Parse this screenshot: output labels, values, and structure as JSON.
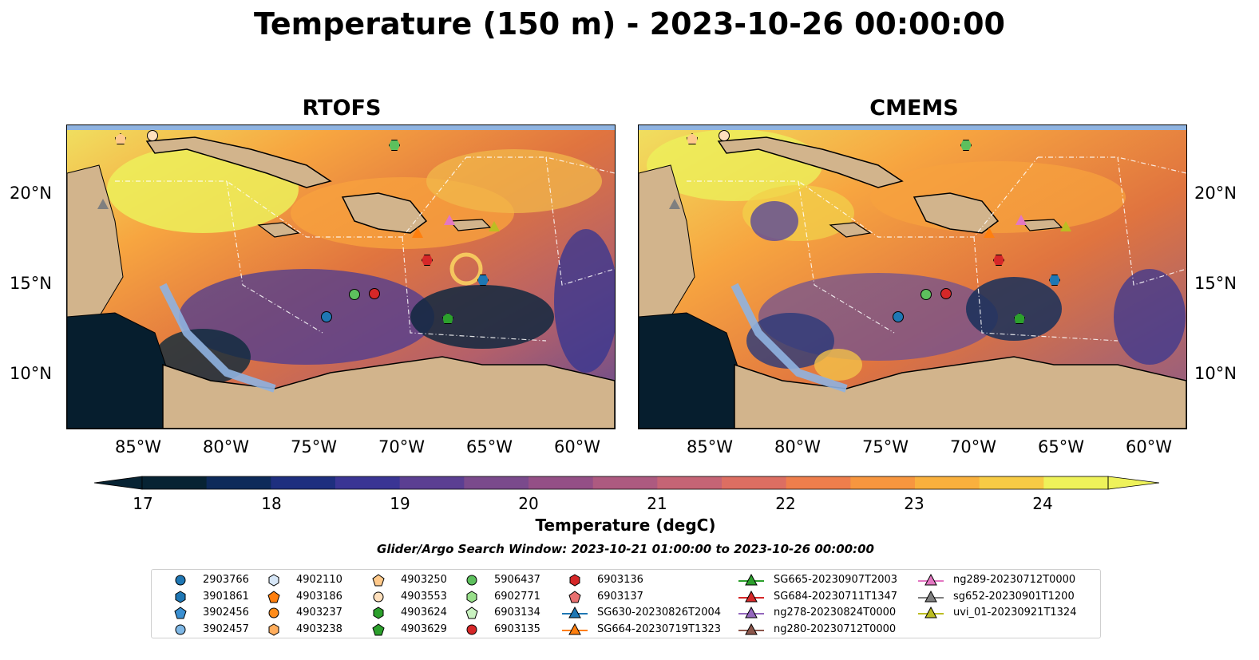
{
  "title": "Temperature (150 m) - 2023-10-26 00:00:00",
  "maps": {
    "left_title": "RTOFS",
    "right_title": "CMEMS",
    "lat_labels": [
      "20°N",
      "15°N",
      "10°N"
    ],
    "lon_labels": [
      "85°W",
      "80°W",
      "75°W",
      "70°W",
      "65°W",
      "60°W"
    ],
    "colors": {
      "land": "#d2b48c",
      "shallow_water": "#8fb3e0",
      "deep_cold": "#061e2e"
    }
  },
  "colorbar": {
    "title": "Temperature (degC)",
    "ticks": [
      "17",
      "18",
      "19",
      "20",
      "21",
      "22",
      "23",
      "24"
    ],
    "range": [
      17,
      24.5
    ],
    "step": 0.5
  },
  "search_window": "Glider/Argo Search Window: 2023-10-21 01:00:00 to 2023-10-26 00:00:00",
  "legend": {
    "items": [
      {
        "label": "2903766",
        "marker": "circle",
        "color": "#1f77b4"
      },
      {
        "label": "3901861",
        "marker": "hexagon",
        "color": "#1f77b4"
      },
      {
        "label": "3902456",
        "marker": "pentagon",
        "color": "#3a8fd1"
      },
      {
        "label": "3902457",
        "marker": "circle",
        "color": "#7fb8e6"
      },
      {
        "label": "4902110",
        "marker": "hexagon",
        "color": "#d6e6f7"
      },
      {
        "label": "4903186",
        "marker": "pentagon",
        "color": "#ff7f0e"
      },
      {
        "label": "4903237",
        "marker": "circle",
        "color": "#ff8c1a"
      },
      {
        "label": "4903238",
        "marker": "hexagon",
        "color": "#ffad5c"
      },
      {
        "label": "4903250",
        "marker": "pentagon",
        "color": "#ffc98a"
      },
      {
        "label": "4903553",
        "marker": "circle",
        "color": "#ffe0bd"
      },
      {
        "label": "4903624",
        "marker": "hexagon",
        "color": "#2ca02c"
      },
      {
        "label": "4903629",
        "marker": "pentagon",
        "color": "#2ca02c"
      },
      {
        "label": "5906437",
        "marker": "circle",
        "color": "#5dc05d"
      },
      {
        "label": "6902771",
        "marker": "hexagon",
        "color": "#98df8a"
      },
      {
        "label": "6903134",
        "marker": "pentagon",
        "color": "#c9f2c0"
      },
      {
        "label": "6903135",
        "marker": "circle",
        "color": "#d62728"
      },
      {
        "label": "6903136",
        "marker": "hexagon",
        "color": "#d62728"
      },
      {
        "label": "6903137",
        "marker": "pentagon",
        "color": "#e87070"
      },
      {
        "label": "SG630-20230826T2004",
        "marker": "triangle-line",
        "color": "#1f77b4"
      },
      {
        "label": "SG664-20230719T1323",
        "marker": "triangle-line",
        "color": "#ff7f0e"
      },
      {
        "label": "SG665-20230907T2003",
        "marker": "triangle-line",
        "color": "#2ca02c"
      },
      {
        "label": "SG684-20230711T1347",
        "marker": "triangle-line",
        "color": "#d62728"
      },
      {
        "label": "ng278-20230824T0000",
        "marker": "triangle-line",
        "color": "#9467bd"
      },
      {
        "label": "ng280-20230712T0000",
        "marker": "triangle-line",
        "color": "#8c564b"
      },
      {
        "label": "ng289-20230712T0000",
        "marker": "triangle-line",
        "color": "#e377c2"
      },
      {
        "label": "sg652-20230901T1200",
        "marker": "triangle-line",
        "color": "#7f7f7f"
      },
      {
        "label": "uvi_01-20230921T1324",
        "marker": "triangle-line",
        "color": "#bcbd22"
      }
    ]
  }
}
